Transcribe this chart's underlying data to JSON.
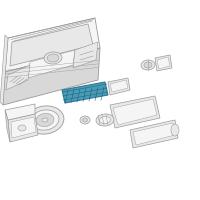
{
  "bg_color": "#ffffff",
  "lc": "#999999",
  "lc_dark": "#666666",
  "hc": "#4a9bb5",
  "hc_dark": "#2a7a95",
  "face_light": "#f5f5f5",
  "face_mid": "#e8e8e8",
  "face_dark": "#d8d8d8"
}
